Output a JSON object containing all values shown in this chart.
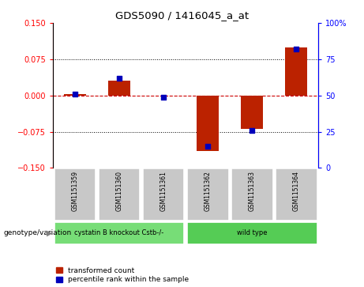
{
  "title": "GDS5090 / 1416045_a_at",
  "samples": [
    "GSM1151359",
    "GSM1151360",
    "GSM1151361",
    "GSM1151362",
    "GSM1151363",
    "GSM1151364"
  ],
  "transformed_count": [
    0.003,
    0.03,
    0.0,
    -0.115,
    -0.07,
    0.1
  ],
  "percentile_rank": [
    51,
    62,
    49,
    15,
    26,
    82
  ],
  "groups": [
    {
      "label": "cystatin B knockout Cstb-/-",
      "samples": [
        0,
        1,
        2
      ],
      "color": "#77DD77"
    },
    {
      "label": "wild type",
      "samples": [
        3,
        4,
        5
      ],
      "color": "#55CC55"
    }
  ],
  "ylim_left": [
    -0.15,
    0.15
  ],
  "ylim_right": [
    0,
    100
  ],
  "yticks_left": [
    -0.15,
    -0.075,
    0,
    0.075,
    0.15
  ],
  "yticks_right": [
    0,
    25,
    50,
    75,
    100
  ],
  "bar_color_red": "#BB2200",
  "bar_color_blue": "#0000BB",
  "zero_line_color": "#CC0000",
  "bg_color": "#FFFFFF",
  "sample_box_color": "#C8C8C8",
  "genotype_label": "genotype/variation",
  "legend_red": "transformed count",
  "legend_blue": "percentile rank within the sample",
  "bar_width": 0.5,
  "blue_square_size": 25
}
